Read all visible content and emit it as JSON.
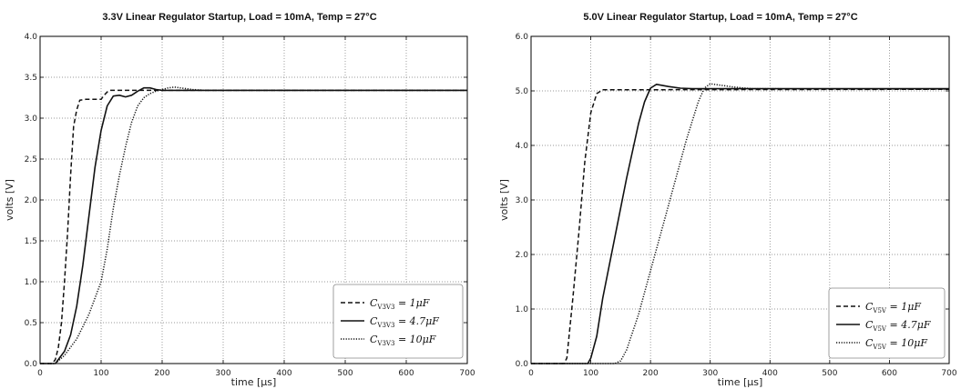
{
  "chart_data": [
    {
      "type": "line",
      "title": "3.3V Linear Regulator Startup, Load = 10mA, Temp = 27°C",
      "xlabel": "time [μs]",
      "ylabel": "volts [V]",
      "xlim": [
        0,
        700
      ],
      "ylim": [
        0,
        4.0
      ],
      "xticks": [
        "0",
        "100",
        "200",
        "300",
        "400",
        "500",
        "600",
        "700"
      ],
      "yticks": [
        "0.0",
        "0.5",
        "1.0",
        "1.5",
        "2.0",
        "2.5",
        "3.0",
        "3.5",
        "4.0"
      ],
      "grid": true,
      "legend_position": "bottom-right",
      "series": [
        {
          "name": "C_V3V3 = 1μF",
          "label_main": "C",
          "label_sub": "V3V3",
          "label_rest": " = 1μF",
          "style": "dashed",
          "points": [
            [
              0,
              0
            ],
            [
              20,
              0
            ],
            [
              25,
              0.05
            ],
            [
              30,
              0.2
            ],
            [
              35,
              0.5
            ],
            [
              40,
              1.0
            ],
            [
              45,
              1.6
            ],
            [
              50,
              2.3
            ],
            [
              55,
              2.9
            ],
            [
              60,
              3.1
            ],
            [
              65,
              3.22
            ],
            [
              75,
              3.23
            ],
            [
              100,
              3.23
            ],
            [
              105,
              3.28
            ],
            [
              110,
              3.32
            ],
            [
              115,
              3.34
            ],
            [
              700,
              3.34
            ]
          ]
        },
        {
          "name": "C_V3V3 = 4.7μF",
          "label_main": "C",
          "label_sub": "V3V3",
          "label_rest": " = 4.7μF",
          "style": "solid",
          "points": [
            [
              0,
              0
            ],
            [
              25,
              0
            ],
            [
              30,
              0.05
            ],
            [
              40,
              0.15
            ],
            [
              50,
              0.35
            ],
            [
              60,
              0.7
            ],
            [
              70,
              1.2
            ],
            [
              80,
              1.8
            ],
            [
              90,
              2.4
            ],
            [
              100,
              2.85
            ],
            [
              110,
              3.15
            ],
            [
              120,
              3.27
            ],
            [
              130,
              3.28
            ],
            [
              140,
              3.26
            ],
            [
              150,
              3.28
            ],
            [
              160,
              3.33
            ],
            [
              170,
              3.37
            ],
            [
              180,
              3.37
            ],
            [
              190,
              3.35
            ],
            [
              200,
              3.34
            ],
            [
              700,
              3.34
            ]
          ]
        },
        {
          "name": "C_V3V3 = 10μF",
          "label_main": "C",
          "label_sub": "V3V3",
          "label_rest": " = 10μF",
          "style": "dotted",
          "points": [
            [
              0,
              0
            ],
            [
              25,
              0
            ],
            [
              40,
              0.1
            ],
            [
              60,
              0.3
            ],
            [
              80,
              0.6
            ],
            [
              100,
              1.0
            ],
            [
              110,
              1.4
            ],
            [
              120,
              1.9
            ],
            [
              130,
              2.3
            ],
            [
              140,
              2.65
            ],
            [
              150,
              2.95
            ],
            [
              160,
              3.15
            ],
            [
              170,
              3.25
            ],
            [
              180,
              3.3
            ],
            [
              190,
              3.33
            ],
            [
              200,
              3.35
            ],
            [
              210,
              3.37
            ],
            [
              220,
              3.38
            ],
            [
              230,
              3.37
            ],
            [
              250,
              3.35
            ],
            [
              270,
              3.34
            ],
            [
              700,
              3.34
            ]
          ]
        }
      ]
    },
    {
      "type": "line",
      "title": "5.0V Linear Regulator Startup, Load = 10mA, Temp = 27°C",
      "xlabel": "time [μs]",
      "ylabel": "volts [V]",
      "xlim": [
        0,
        700
      ],
      "ylim": [
        0,
        6.0
      ],
      "xticks": [
        "0",
        "100",
        "200",
        "300",
        "400",
        "500",
        "600",
        "700"
      ],
      "yticks": [
        "0.0",
        "1.0",
        "2.0",
        "3.0",
        "4.0",
        "5.0",
        "6.0"
      ],
      "grid": true,
      "legend_position": "bottom-right",
      "series": [
        {
          "name": "C_V5V = 1μF",
          "label_main": "C",
          "label_sub": "V5V",
          "label_rest": " = 1μF",
          "style": "dashed",
          "points": [
            [
              0,
              0
            ],
            [
              55,
              0
            ],
            [
              60,
              0.1
            ],
            [
              70,
              1.2
            ],
            [
              80,
              2.4
            ],
            [
              90,
              3.7
            ],
            [
              100,
              4.6
            ],
            [
              110,
              4.95
            ],
            [
              120,
              5.02
            ],
            [
              700,
              5.03
            ]
          ]
        },
        {
          "name": "C_V5V = 4.7μF",
          "label_main": "C",
          "label_sub": "V5V",
          "label_rest": " = 4.7μF",
          "style": "solid",
          "points": [
            [
              0,
              0
            ],
            [
              95,
              0
            ],
            [
              100,
              0.1
            ],
            [
              110,
              0.5
            ],
            [
              120,
              1.2
            ],
            [
              140,
              2.3
            ],
            [
              160,
              3.4
            ],
            [
              180,
              4.4
            ],
            [
              190,
              4.8
            ],
            [
              200,
              5.05
            ],
            [
              210,
              5.12
            ],
            [
              230,
              5.08
            ],
            [
              250,
              5.05
            ],
            [
              270,
              5.04
            ],
            [
              700,
              5.04
            ]
          ]
        },
        {
          "name": "C_V5V = 10μF",
          "label_main": "C",
          "label_sub": "V5V",
          "label_rest": " = 10μF",
          "style": "dotted",
          "points": [
            [
              0,
              0
            ],
            [
              140,
              0
            ],
            [
              150,
              0.05
            ],
            [
              160,
              0.25
            ],
            [
              180,
              0.9
            ],
            [
              200,
              1.7
            ],
            [
              220,
              2.5
            ],
            [
              240,
              3.3
            ],
            [
              260,
              4.1
            ],
            [
              280,
              4.8
            ],
            [
              290,
              5.05
            ],
            [
              300,
              5.13
            ],
            [
              320,
              5.1
            ],
            [
              340,
              5.07
            ],
            [
              370,
              5.04
            ],
            [
              700,
              5.03
            ]
          ]
        }
      ]
    }
  ]
}
